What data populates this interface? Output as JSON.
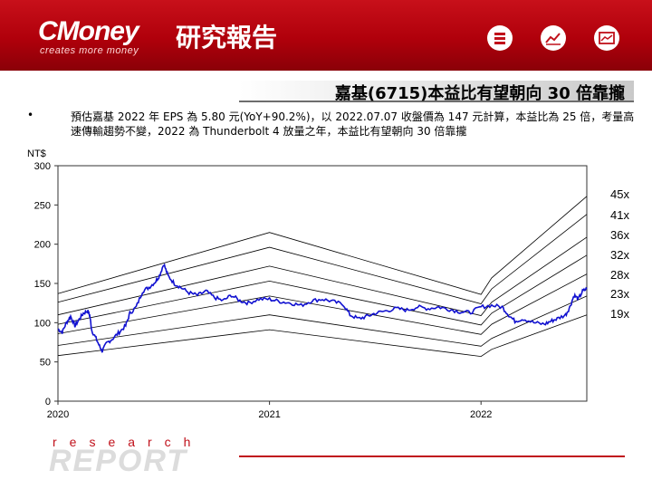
{
  "brand": {
    "logo_text": "CMoney",
    "logo_cn": "研究報告",
    "tagline": "creates more money",
    "accent": "#c0101a"
  },
  "header_icons": [
    "coins-icon",
    "line-chart-icon",
    "picture-chart-icon"
  ],
  "slide": {
    "title": "嘉基(6715)本益比有望朝向 30 倍靠攏",
    "bullet": "•",
    "text": "預估嘉基 2022 年 EPS 為 5.80 元(YoY+90.2%)，以 2022.07.07 收盤價為 147 元計算，本益比為 25 倍，考量高速傳輸趨勢不變，2022 為 Thunderbolt 4 放量之年，本益比有望朝向 30 倍靠攏"
  },
  "footer": {
    "research": "research",
    "report": "REPORT"
  },
  "chart_data": {
    "type": "line",
    "ylabel": "NT$",
    "ylim": [
      0,
      300
    ],
    "yticks": [
      "0",
      "50",
      "100",
      "150",
      "200",
      "250",
      "300"
    ],
    "xlabels": [
      "2020",
      "2021",
      "2022"
    ],
    "xlim": [
      2020.0,
      2022.5
    ],
    "grid": false,
    "legend": "right",
    "price_color": "#1010d0",
    "band_color": "#000000",
    "price_series": {
      "name": "",
      "points": [
        [
          2020.0,
          92
        ],
        [
          2020.02,
          88
        ],
        [
          2020.04,
          100
        ],
        [
          2020.06,
          108
        ],
        [
          2020.08,
          96
        ],
        [
          2020.1,
          104
        ],
        [
          2020.12,
          112
        ],
        [
          2020.14,
          115
        ],
        [
          2020.15,
          110
        ],
        [
          2020.16,
          90
        ],
        [
          2020.18,
          80
        ],
        [
          2020.2,
          68
        ],
        [
          2020.21,
          64
        ],
        [
          2020.23,
          74
        ],
        [
          2020.26,
          80
        ],
        [
          2020.29,
          88
        ],
        [
          2020.32,
          96
        ],
        [
          2020.34,
          112
        ],
        [
          2020.37,
          120
        ],
        [
          2020.4,
          140
        ],
        [
          2020.43,
          145
        ],
        [
          2020.46,
          152
        ],
        [
          2020.48,
          160
        ],
        [
          2020.5,
          175
        ],
        [
          2020.52,
          160
        ],
        [
          2020.55,
          150
        ],
        [
          2020.58,
          145
        ],
        [
          2020.62,
          138
        ],
        [
          2020.66,
          135
        ],
        [
          2020.7,
          140
        ],
        [
          2020.74,
          132
        ],
        [
          2020.78,
          128
        ],
        [
          2020.82,
          135
        ],
        [
          2020.86,
          128
        ],
        [
          2020.9,
          125
        ],
        [
          2020.95,
          130
        ],
        [
          2021.0,
          130
        ],
        [
          2021.05,
          127
        ],
        [
          2021.1,
          125
        ],
        [
          2021.15,
          122
        ],
        [
          2021.2,
          128
        ],
        [
          2021.25,
          130
        ],
        [
          2021.3,
          127
        ],
        [
          2021.35,
          123
        ],
        [
          2021.38,
          110
        ],
        [
          2021.42,
          105
        ],
        [
          2021.46,
          108
        ],
        [
          2021.5,
          112
        ],
        [
          2021.55,
          115
        ],
        [
          2021.6,
          118
        ],
        [
          2021.65,
          116
        ],
        [
          2021.7,
          120
        ],
        [
          2021.75,
          118
        ],
        [
          2021.8,
          120
        ],
        [
          2021.85,
          117
        ],
        [
          2021.9,
          114
        ],
        [
          2021.95,
          113
        ],
        [
          2022.0,
          120
        ],
        [
          2022.05,
          122
        ],
        [
          2022.1,
          120
        ],
        [
          2022.13,
          110
        ],
        [
          2022.16,
          102
        ],
        [
          2022.2,
          105
        ],
        [
          2022.25,
          100
        ],
        [
          2022.3,
          98
        ],
        [
          2022.33,
          102
        ],
        [
          2022.36,
          105
        ],
        [
          2022.4,
          110
        ],
        [
          2022.42,
          120
        ],
        [
          2022.44,
          135
        ],
        [
          2022.46,
          130
        ],
        [
          2022.48,
          140
        ],
        [
          2022.5,
          143
        ]
      ]
    },
    "pe_bands": [
      {
        "label": "45x",
        "values": [
          [
            2020.0,
            137
          ],
          [
            2021.0,
            215
          ],
          [
            2022.0,
            136
          ],
          [
            2022.05,
            157
          ],
          [
            2022.5,
            261
          ]
        ]
      },
      {
        "label": "41x",
        "values": [
          [
            2020.0,
            126
          ],
          [
            2021.0,
            196
          ],
          [
            2022.0,
            124
          ],
          [
            2022.05,
            143
          ],
          [
            2022.5,
            238
          ]
        ]
      },
      {
        "label": "36x",
        "values": [
          [
            2020.0,
            110
          ],
          [
            2021.0,
            172
          ],
          [
            2022.0,
            109
          ],
          [
            2022.05,
            126
          ],
          [
            2022.5,
            209
          ]
        ]
      },
      {
        "label": "32x",
        "values": [
          [
            2020.0,
            98
          ],
          [
            2021.0,
            153
          ],
          [
            2022.0,
            97
          ],
          [
            2022.05,
            112
          ],
          [
            2022.5,
            186
          ]
        ]
      },
      {
        "label": "28x",
        "values": [
          [
            2020.0,
            86
          ],
          [
            2021.0,
            134
          ],
          [
            2022.0,
            85
          ],
          [
            2022.05,
            98
          ],
          [
            2022.5,
            162
          ]
        ]
      },
      {
        "label": "23x",
        "values": [
          [
            2020.0,
            71
          ],
          [
            2021.0,
            110
          ],
          [
            2022.0,
            70
          ],
          [
            2022.05,
            80
          ],
          [
            2022.5,
            134
          ]
        ]
      },
      {
        "label": "19x",
        "values": [
          [
            2020.0,
            58
          ],
          [
            2021.0,
            91
          ],
          [
            2022.0,
            57
          ],
          [
            2022.05,
            66
          ],
          [
            2022.5,
            110
          ]
        ]
      }
    ],
    "band_label_y": [
      45,
      41,
      36,
      32,
      28,
      23,
      19
    ]
  }
}
